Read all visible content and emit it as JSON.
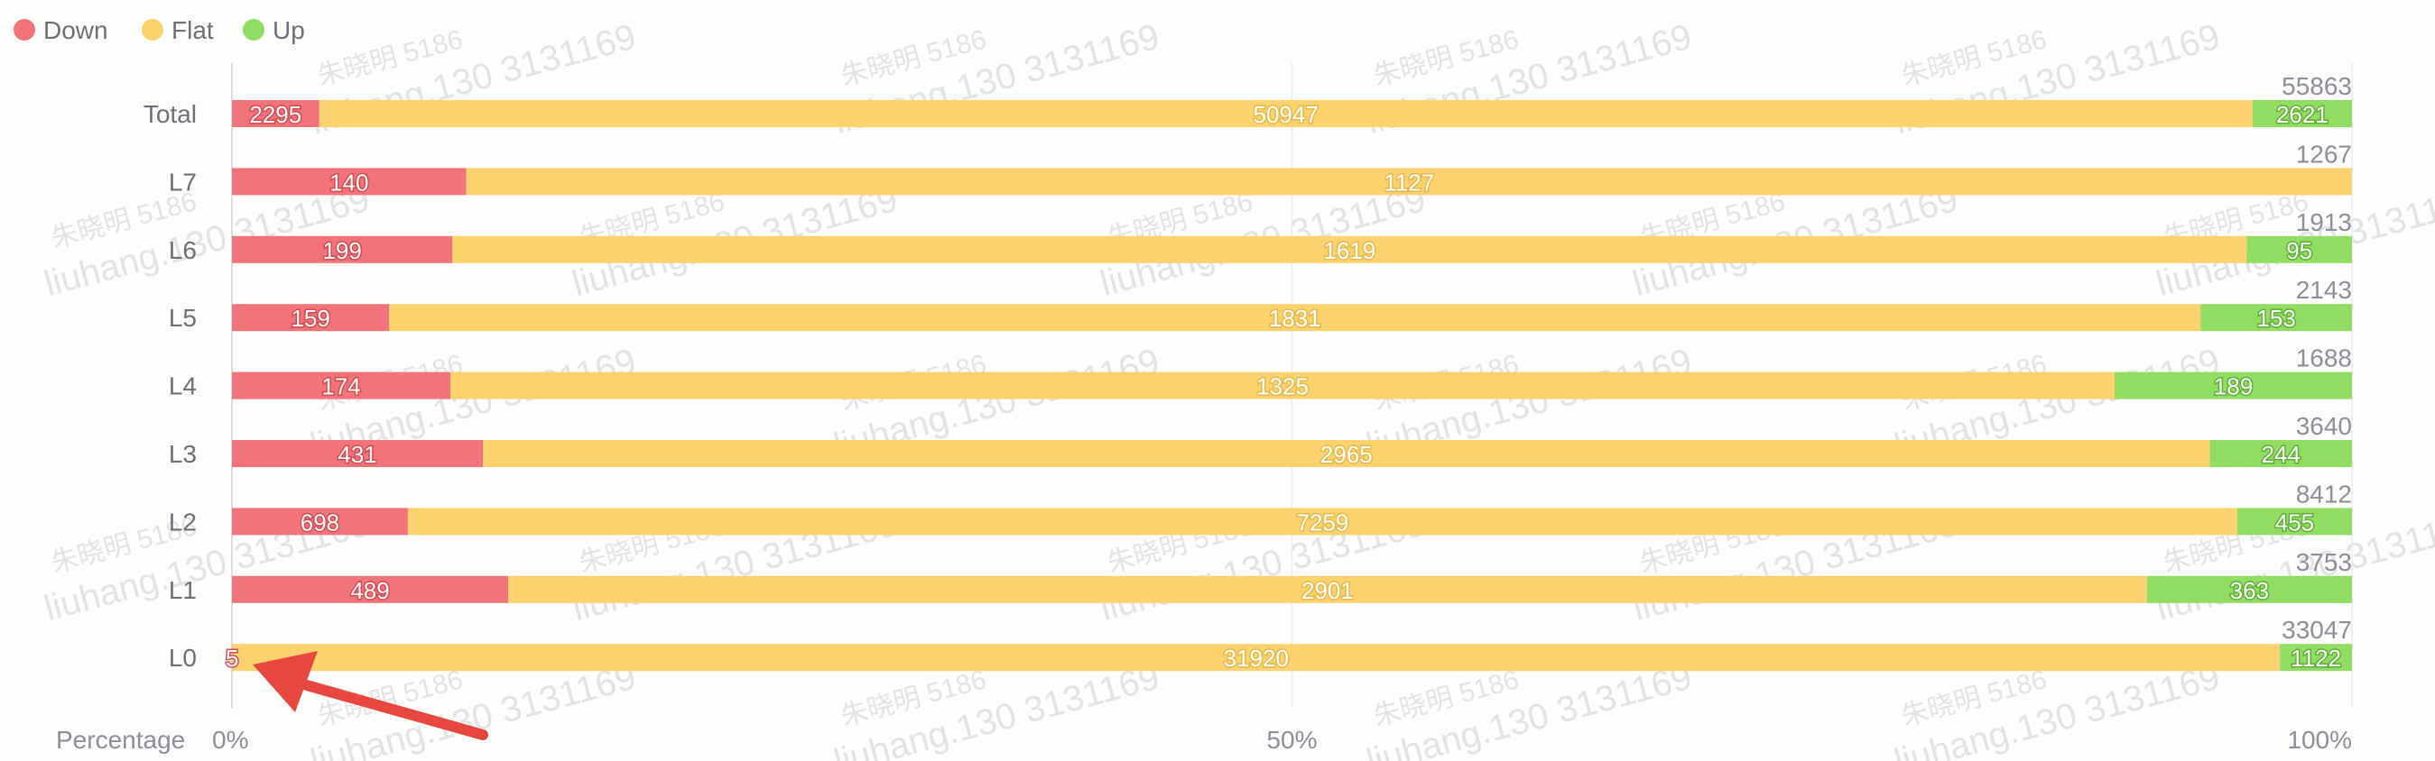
{
  "chart_data": {
    "type": "bar",
    "orientation": "horizontal",
    "stacked": true,
    "normalized": true,
    "categories": [
      "Total",
      "L7",
      "L6",
      "L5",
      "L4",
      "L3",
      "L2",
      "L1",
      "L0"
    ],
    "series": [
      {
        "name": "Down",
        "color": "#f2747a",
        "values": [
          2295,
          140,
          199,
          159,
          174,
          431,
          698,
          489,
          5
        ]
      },
      {
        "name": "Flat",
        "color": "#fbd26d",
        "values": [
          50947,
          1127,
          1619,
          1831,
          1325,
          2965,
          7259,
          2901,
          31920
        ]
      },
      {
        "name": "Up",
        "color": "#91dc62",
        "values": [
          2621,
          0,
          95,
          153,
          189,
          244,
          455,
          363,
          1122
        ]
      }
    ],
    "totals": [
      55863,
      1267,
      1913,
      2143,
      1688,
      3640,
      8412,
      3753,
      33047
    ],
    "xlabel": "Percentage",
    "x_ticks": [
      "0%",
      "50%",
      "100%"
    ],
    "xlim": [
      0,
      100
    ],
    "legend_position": "top-left"
  },
  "watermark": {
    "lines": [
      "朱晓明 5186",
      "liuhang.130 3131169"
    ],
    "color": "#d9d9de"
  },
  "annotation": {
    "type": "arrow",
    "color": "#e8473f",
    "points_to": "L0 Down segment (5)"
  }
}
